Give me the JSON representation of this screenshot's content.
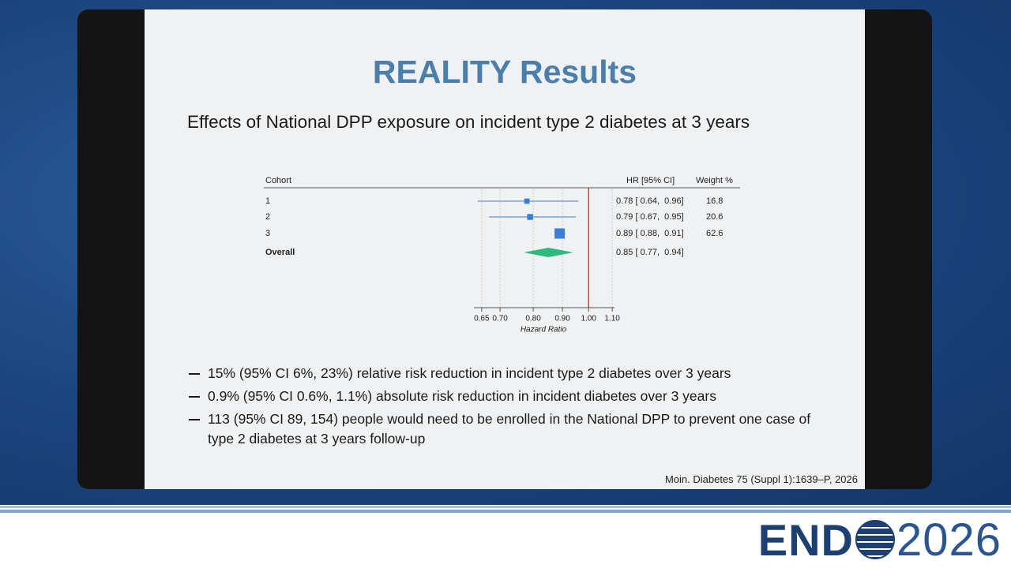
{
  "slide": {
    "title": "REALITY Results",
    "subtitle": "Effects of National DPP exposure on incident type 2 diabetes at 3 years",
    "bullets": [
      "15% (95% CI 6%, 23%) relative risk reduction in incident type 2 diabetes over 3 years",
      "0.9% (95% CI 0.6%, 1.1%) absolute risk reduction in incident diabetes over 3 years",
      "113 (95% CI 89, 154) people would need to be enrolled in the National DPP to prevent one case of type 2 diabetes at 3 years follow-up"
    ],
    "citation": "Moin. Diabetes 75 (Suppl 1):1639–P, 2026"
  },
  "branding": {
    "left": "END",
    "right": "2026"
  },
  "chart_data": {
    "type": "forest",
    "column_headers": {
      "cohort": "Cohort",
      "estimate": "HR [95% CI]",
      "weight": "Weight %"
    },
    "x_label": "Hazard Ratio",
    "x_scale": "log",
    "xlim": [
      0.63,
      1.11
    ],
    "xticks": [
      0.65,
      {
        "value": 0.7,
        "label": "0.70"
      },
      {
        "value": 0.8,
        "label": "0.80"
      },
      {
        "value": 0.9,
        "label": "0.90"
      },
      {
        "value": 1,
        "label": "1.00"
      },
      {
        "value": 1.1,
        "label": "1.10"
      }
    ],
    "grid": true,
    "reference_line": 1,
    "reference_color": "#c0282d",
    "color": "#3a7fd5",
    "summary_color": "#2dba7d",
    "categories": [
      "1",
      "2",
      "3"
    ],
    "values": [
      0.78,
      0.79,
      0.89
    ],
    "lower": [
      0.64,
      0.67,
      0.88
    ],
    "upper": [
      0.96,
      0.95,
      0.91
    ],
    "value_labels": [
      "0.78 [ 0.64,  0.96]",
      "0.79 [ 0.67,  0.95]",
      "0.89 [ 0.88,  0.91]"
    ],
    "weights": [
      16.8,
      20.6,
      62.6
    ],
    "overall": {
      "name": "Overall",
      "value": 0.85,
      "lower": 0.77,
      "upper": 0.94,
      "value_label": "0.85 [ 0.77,  0.94]"
    }
  }
}
